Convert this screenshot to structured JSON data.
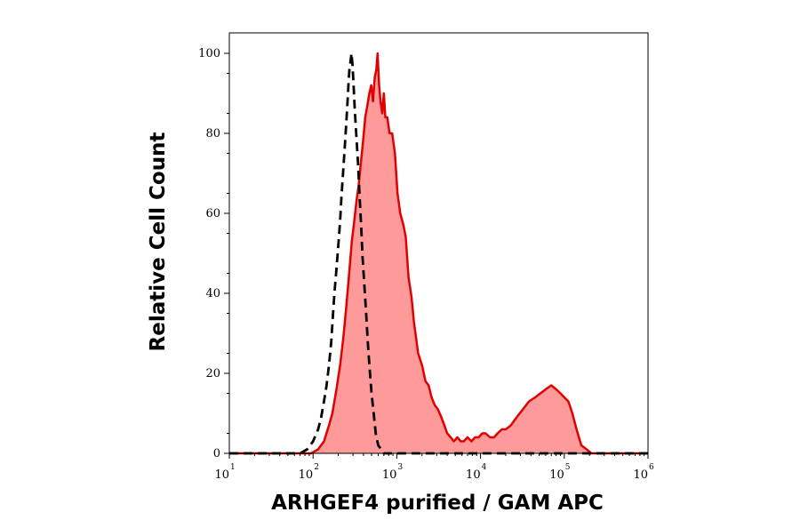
{
  "chart_data": {
    "type": "area",
    "xlabel": "ARHGEF4 purified / GAM APC",
    "ylabel": "Relative Cell Count",
    "x_scale": "log",
    "xlim": [
      10,
      1000000
    ],
    "ylim": [
      0,
      100
    ],
    "x_ticks": [
      {
        "base": "10",
        "exp": "1",
        "value": 10
      },
      {
        "base": "10",
        "exp": "2",
        "value": 100
      },
      {
        "base": "10",
        "exp": "3",
        "value": 1000
      },
      {
        "base": "10",
        "exp": "4",
        "value": 10000
      },
      {
        "base": "10",
        "exp": "5",
        "value": 100000
      },
      {
        "base": "10",
        "exp": "6",
        "value": 1000000
      }
    ],
    "y_ticks": [
      "0",
      "20",
      "40",
      "60",
      "80",
      "100"
    ],
    "grid": false,
    "series": [
      {
        "style": "filled",
        "color": "#e00000",
        "fill": "#ff9a9a",
        "points": [
          [
            10,
            0
          ],
          [
            60,
            0
          ],
          [
            95,
            0
          ],
          [
            115,
            1
          ],
          [
            135,
            3
          ],
          [
            155,
            7
          ],
          [
            170,
            10
          ],
          [
            190,
            16
          ],
          [
            210,
            22
          ],
          [
            230,
            29
          ],
          [
            250,
            37
          ],
          [
            270,
            45
          ],
          [
            290,
            53
          ],
          [
            310,
            58
          ],
          [
            330,
            63
          ],
          [
            350,
            67
          ],
          [
            370,
            72
          ],
          [
            395,
            78
          ],
          [
            420,
            84
          ],
          [
            445,
            87
          ],
          [
            470,
            90
          ],
          [
            495,
            92
          ],
          [
            520,
            88
          ],
          [
            545,
            94
          ],
          [
            570,
            96
          ],
          [
            590,
            100
          ],
          [
            615,
            92
          ],
          [
            640,
            88
          ],
          [
            670,
            85
          ],
          [
            700,
            90
          ],
          [
            730,
            84
          ],
          [
            770,
            84
          ],
          [
            820,
            80
          ],
          [
            880,
            80
          ],
          [
            950,
            75
          ],
          [
            1020,
            65
          ],
          [
            1100,
            60
          ],
          [
            1200,
            57
          ],
          [
            1280,
            54
          ],
          [
            1380,
            44
          ],
          [
            1500,
            39
          ],
          [
            1600,
            33
          ],
          [
            1800,
            25
          ],
          [
            2000,
            22
          ],
          [
            2200,
            18
          ],
          [
            2400,
            17
          ],
          [
            2600,
            14
          ],
          [
            2850,
            12
          ],
          [
            3100,
            11
          ],
          [
            3400,
            9
          ],
          [
            3700,
            7
          ],
          [
            4000,
            5
          ],
          [
            4400,
            4
          ],
          [
            4800,
            3
          ],
          [
            5300,
            4
          ],
          [
            5800,
            3
          ],
          [
            6300,
            3
          ],
          [
            7000,
            4
          ],
          [
            7800,
            3
          ],
          [
            8600,
            4
          ],
          [
            9500,
            4
          ],
          [
            10500,
            5
          ],
          [
            11500,
            5
          ],
          [
            13000,
            4
          ],
          [
            14500,
            4
          ],
          [
            16000,
            5
          ],
          [
            18000,
            6
          ],
          [
            20000,
            6
          ],
          [
            23000,
            7
          ],
          [
            27000,
            9
          ],
          [
            32000,
            11
          ],
          [
            38000,
            13
          ],
          [
            45000,
            14
          ],
          [
            52000,
            15
          ],
          [
            60000,
            16
          ],
          [
            70000,
            17
          ],
          [
            80000,
            16
          ],
          [
            90000,
            15
          ],
          [
            100000,
            14
          ],
          [
            112000,
            13
          ],
          [
            125000,
            10
          ],
          [
            140000,
            6
          ],
          [
            160000,
            2
          ],
          [
            185000,
            1
          ],
          [
            210000,
            0
          ],
          [
            1000000,
            0
          ]
        ]
      },
      {
        "style": "dashed",
        "color": "#000000",
        "points": [
          [
            10,
            0
          ],
          [
            70,
            0
          ],
          [
            85,
            1
          ],
          [
            100,
            3
          ],
          [
            115,
            6
          ],
          [
            125,
            9
          ],
          [
            135,
            13
          ],
          [
            145,
            17
          ],
          [
            155,
            22
          ],
          [
            165,
            28
          ],
          [
            172,
            34
          ],
          [
            180,
            40
          ],
          [
            190,
            46
          ],
          [
            200,
            52
          ],
          [
            210,
            58
          ],
          [
            218,
            64
          ],
          [
            228,
            70
          ],
          [
            238,
            76
          ],
          [
            248,
            82
          ],
          [
            258,
            88
          ],
          [
            266,
            93
          ],
          [
            272,
            96
          ],
          [
            280,
            98
          ],
          [
            288,
            100
          ],
          [
            296,
            97
          ],
          [
            305,
            92
          ],
          [
            315,
            86
          ],
          [
            330,
            79
          ],
          [
            345,
            72
          ],
          [
            360,
            64
          ],
          [
            375,
            57
          ],
          [
            390,
            49
          ],
          [
            410,
            42
          ],
          [
            430,
            35
          ],
          [
            450,
            28
          ],
          [
            475,
            21
          ],
          [
            500,
            15
          ],
          [
            530,
            10
          ],
          [
            560,
            5
          ],
          [
            600,
            2
          ],
          [
            650,
            1
          ],
          [
            700,
            0
          ],
          [
            1000000,
            0
          ]
        ]
      }
    ]
  }
}
